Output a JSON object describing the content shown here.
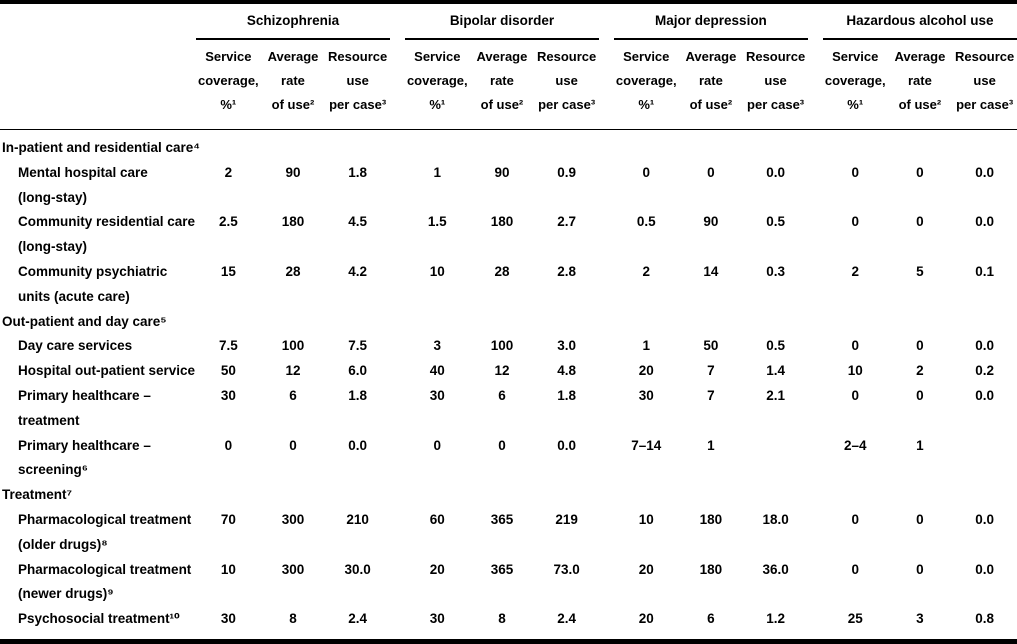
{
  "colors": {
    "text": "#000000",
    "background": "#ffffff",
    "rule": "#000000"
  },
  "table": {
    "groups": [
      {
        "label": "Schizophrenia"
      },
      {
        "label": "Bipolar disorder"
      },
      {
        "label": "Major depression"
      },
      {
        "label": "Hazardous alcohol use"
      }
    ],
    "col_headers": [
      {
        "lines": [
          "Service",
          "coverage,",
          "%¹"
        ]
      },
      {
        "lines": [
          "Average",
          "rate",
          "of use²"
        ]
      },
      {
        "lines": [
          "Resource",
          "use",
          "per case³"
        ]
      }
    ],
    "rows": [
      {
        "type": "section",
        "label": "In-patient and residential care⁴"
      },
      {
        "type": "service",
        "label": "Mental hospital care",
        "label2": "(long-stay)",
        "values": [
          "2",
          "90",
          "1.8",
          "1",
          "90",
          "0.9",
          "0",
          "0",
          "0.0",
          "0",
          "0",
          "0.0"
        ]
      },
      {
        "type": "service",
        "label": "Community residential care",
        "label2": "(long-stay)",
        "values": [
          "2.5",
          "180",
          "4.5",
          "1.5",
          "180",
          "2.7",
          "0.5",
          "90",
          "0.5",
          "0",
          "0",
          "0.0"
        ]
      },
      {
        "type": "service",
        "label": "Community psychiatric",
        "label2": "units (acute care)",
        "values": [
          "15",
          "28",
          "4.2",
          "10",
          "28",
          "2.8",
          "2",
          "14",
          "0.3",
          "2",
          "5",
          "0.1"
        ]
      },
      {
        "type": "section",
        "label": "Out-patient and day care⁵"
      },
      {
        "type": "service",
        "label": "Day care services",
        "label2": "",
        "values": [
          "7.5",
          "100",
          "7.5",
          "3",
          "100",
          "3.0",
          "1",
          "50",
          "0.5",
          "0",
          "0",
          "0.0"
        ]
      },
      {
        "type": "service",
        "label": "Hospital out-patient service",
        "label2": "",
        "values": [
          "50",
          "12",
          "6.0",
          "40",
          "12",
          "4.8",
          "20",
          "7",
          "1.4",
          "10",
          "2",
          "0.2"
        ]
      },
      {
        "type": "service",
        "label": "Primary healthcare –",
        "label2": "treatment",
        "values": [
          "30",
          "6",
          "1.8",
          "30",
          "6",
          "1.8",
          "30",
          "7",
          "2.1",
          "0",
          "0",
          "0.0"
        ]
      },
      {
        "type": "service",
        "label": "Primary healthcare –",
        "label2": "screening⁶",
        "values": [
          "0",
          "0",
          "0.0",
          "0",
          "0",
          "0.0",
          "7–14",
          "1",
          "",
          "2–4",
          "1",
          ""
        ]
      },
      {
        "type": "section",
        "label": "Treatment⁷"
      },
      {
        "type": "service",
        "label": "Pharmacological treatment",
        "label2": "(older drugs)⁸",
        "values": [
          "70",
          "300",
          "210",
          "60",
          "365",
          "219",
          "10",
          "180",
          "18.0",
          "0",
          "0",
          "0.0"
        ]
      },
      {
        "type": "service",
        "label": "Pharmacological treatment",
        "label2": "(newer drugs)⁹",
        "values": [
          "10",
          "300",
          "30.0",
          "20",
          "365",
          "73.0",
          "20",
          "180",
          "36.0",
          "0",
          "0",
          "0.0"
        ]
      },
      {
        "type": "service",
        "label": "Psychosocial treatment¹⁰",
        "label2": "",
        "values": [
          "30",
          "8",
          "2.4",
          "30",
          "8",
          "2.4",
          "20",
          "6",
          "1.2",
          "25",
          "3",
          "0.8"
        ]
      }
    ]
  }
}
